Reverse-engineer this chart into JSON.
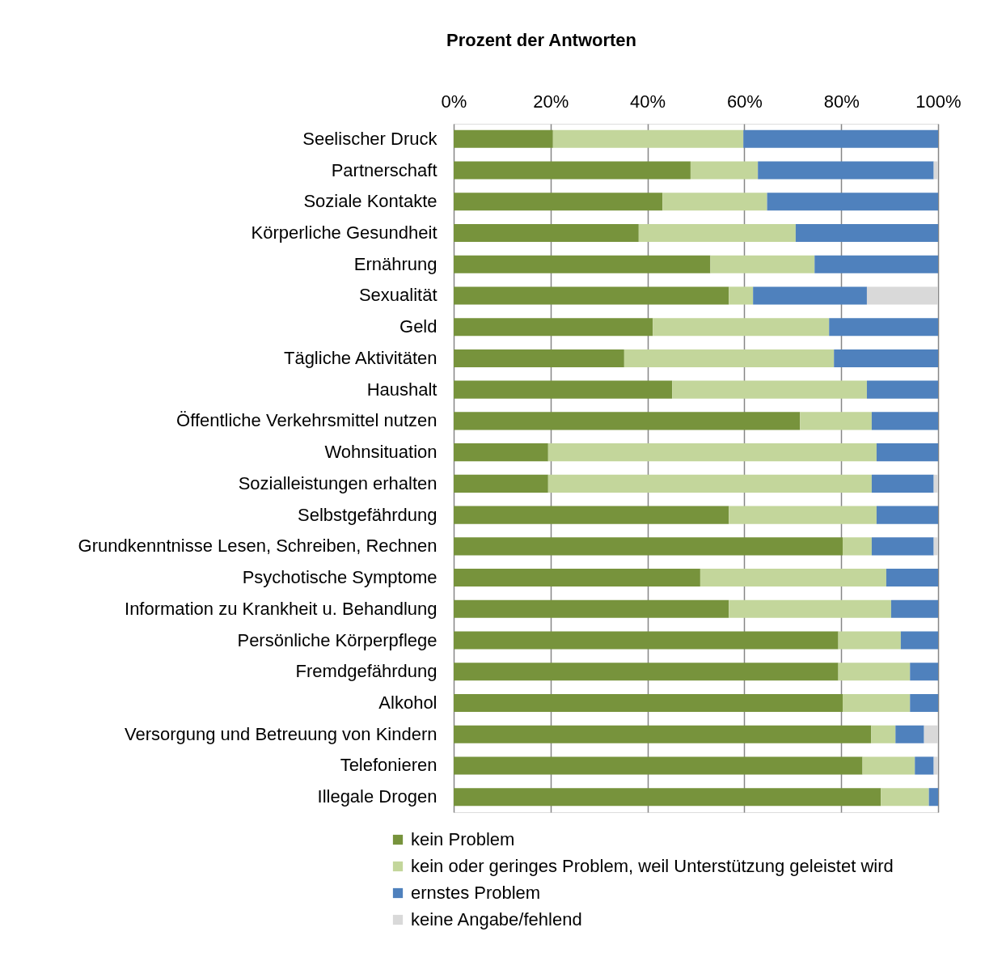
{
  "chart_data": {
    "type": "bar",
    "orientation": "horizontal",
    "stacked": true,
    "title": "Prozent der Antworten",
    "categories": [
      "Seelischer Druck",
      "Partnerschaft",
      "Soziale Kontakte",
      "Körperliche Gesundheit",
      "Ernährung",
      "Sexualität",
      "Geld",
      "Tägliche Aktivitäten",
      "Haushalt",
      "Öffentliche Verkehrsmittel nutzen",
      "Wohnsituation",
      "Sozialleistungen erhalten",
      "Selbstgefährdung",
      "Grundkenntnisse Lesen, Schreiben, Rechnen",
      "Psychotische Symptome",
      "Information zu Krankheit u. Behandlung",
      "Persönliche Körperpflege",
      "Fremdgefährdung",
      "Alkohol",
      "Versorgung und Betreuung von Kindern",
      "Telefonieren",
      "Illegale Drogen"
    ],
    "series": [
      {
        "name": "kein Problem",
        "color": "#77933c",
        "values": [
          20.5,
          48.9,
          43.1,
          38.2,
          53.0,
          56.8,
          41.1,
          35.2,
          45.1,
          71.5,
          19.5,
          19.5,
          56.8,
          80.3,
          50.9,
          56.8,
          79.4,
          79.4,
          80.3,
          86.2,
          84.4,
          88.2
        ]
      },
      {
        "name": "kein oder geringes Problem, weil Unterstützung geleistet wird",
        "color": "#c3d69b",
        "values": [
          39.3,
          13.9,
          21.6,
          32.4,
          21.5,
          5.0,
          36.4,
          43.3,
          40.2,
          14.8,
          67.8,
          66.8,
          30.5,
          6.0,
          38.4,
          33.5,
          12.9,
          14.8,
          13.9,
          5.0,
          10.8,
          9.9
        ]
      },
      {
        "name": "ernstes Problem",
        "color": "#4f81bd",
        "values": [
          40.2,
          36.3,
          35.3,
          29.4,
          25.5,
          23.5,
          22.5,
          21.5,
          14.7,
          13.7,
          12.7,
          12.8,
          12.7,
          12.8,
          10.7,
          9.7,
          7.7,
          5.8,
          5.8,
          5.9,
          3.9,
          1.9
        ]
      },
      {
        "name": "keine Angabe/fehlend",
        "color": "#d9d9d9",
        "values": [
          null,
          0.9,
          null,
          null,
          null,
          14.7,
          null,
          null,
          null,
          null,
          null,
          0.9,
          null,
          0.9,
          null,
          null,
          null,
          null,
          null,
          2.9,
          0.9,
          null
        ]
      }
    ],
    "xlim": [
      0,
      100
    ],
    "xticks": [
      {
        "value": 0,
        "label": "0%"
      },
      {
        "value": 20,
        "label": "20%"
      },
      {
        "value": 40,
        "label": "40%"
      },
      {
        "value": 60,
        "label": "60%"
      },
      {
        "value": 80,
        "label": "80%"
      },
      {
        "value": 100,
        "label": "100%"
      }
    ],
    "grid": "x",
    "legend": "bottom"
  }
}
